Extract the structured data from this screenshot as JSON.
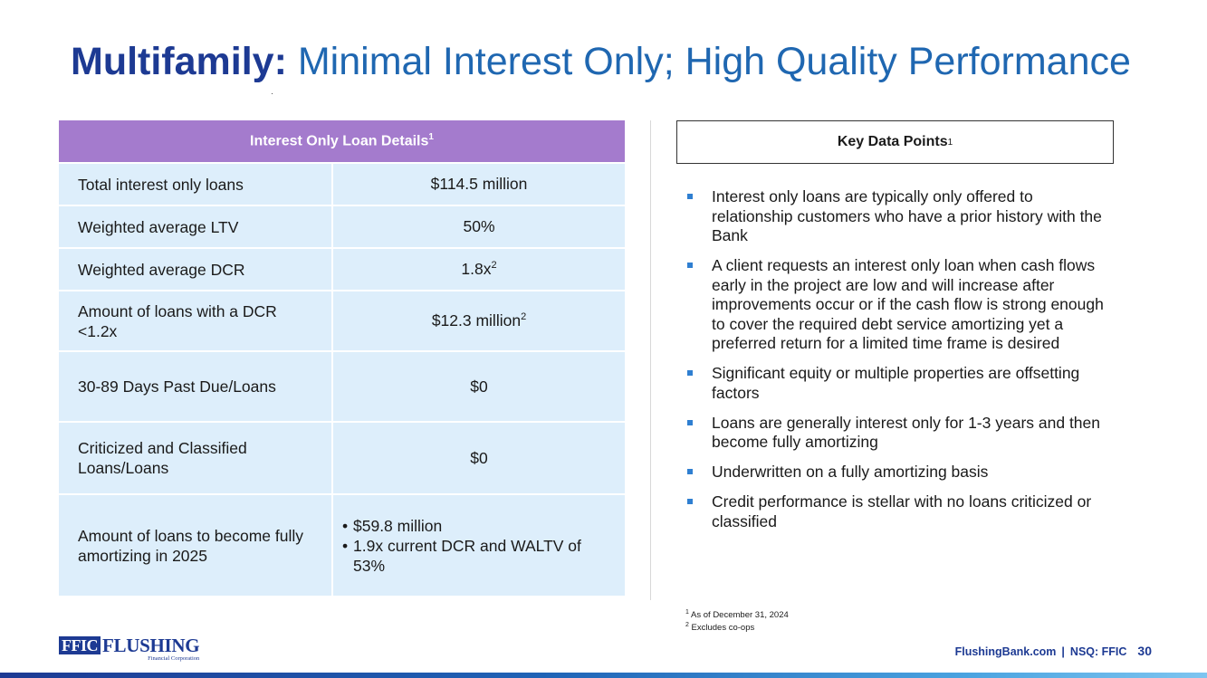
{
  "title": {
    "strong": "Multifamily:",
    "rest": " Minimal Interest Only; High Quality Performance"
  },
  "table": {
    "header": "Interest Only Loan Details",
    "header_sup": "1",
    "rows": [
      {
        "label": "Total interest only loans",
        "value": "$114.5 million",
        "sup": ""
      },
      {
        "label": "Weighted average LTV",
        "value": "50%",
        "sup": ""
      },
      {
        "label": "Weighted average DCR",
        "value": "1.8x",
        "sup": "2"
      },
      {
        "label": "Amount of loans with a DCR <1.2x",
        "value": "$12.3 million",
        "sup": "2"
      },
      {
        "label": "30-89 Days Past Due/Loans",
        "value": "$0",
        "sup": ""
      },
      {
        "label": "Criticized and Classified Loans/Loans",
        "value": "$0",
        "sup": ""
      },
      {
        "label": "Amount of loans to become fully amortizing in 2025",
        "values": [
          "$59.8 million",
          "1.9x current DCR and WALTV of 53%"
        ]
      }
    ]
  },
  "key_points": {
    "title": "Key Data Points",
    "title_sup": "1",
    "items": [
      "Interest only loans are typically only offered to relationship customers who have a prior history with the Bank",
      "A client requests an interest only loan when cash flows early in the project are low and will increase after improvements occur or if the cash flow is strong enough to cover the required debt service amortizing yet a preferred return for a limited time frame is desired",
      "Significant equity or multiple properties are offsetting factors",
      "Loans are generally interest only for 1-3 years and then become fully amortizing",
      "Underwritten on a fully amortizing basis",
      "Credit performance is stellar with no loans criticized or classified"
    ]
  },
  "footnotes": [
    {
      "mark": "1",
      "text": "As of December 31, 2024"
    },
    {
      "mark": "2",
      "text": "Excludes co-ops"
    }
  ],
  "logo": {
    "ffic": "FFIC",
    "flushing": "FLUSHING",
    "sub": "Financial Corporation"
  },
  "footer": {
    "site": "FlushingBank.com",
    "separator": "|",
    "ticker": "NSQ: FFIC",
    "page": "30"
  },
  "colors": {
    "title_dark": "#1d3a93",
    "title_light": "#1f67b1",
    "table_header": "#a47bcd",
    "table_row": "#ddeefb",
    "bullet": "#2f7fd1"
  }
}
